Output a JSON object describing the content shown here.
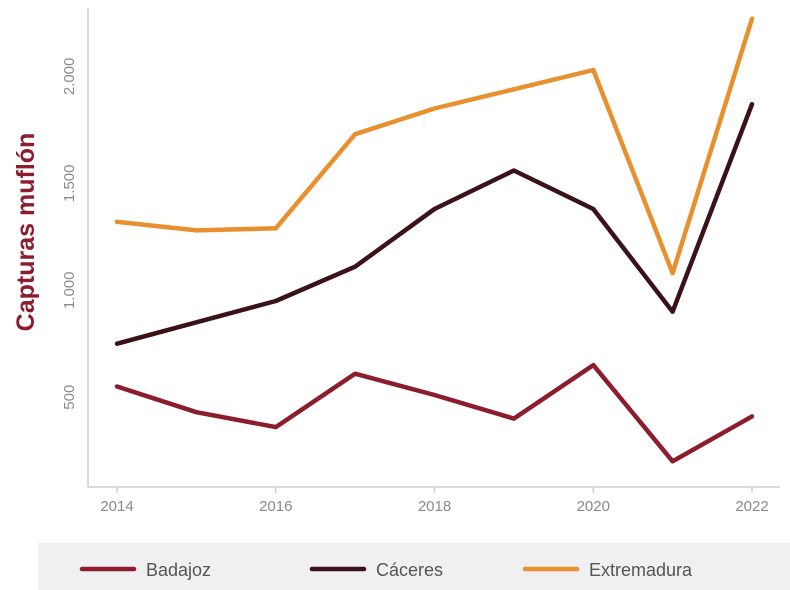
{
  "chart_data": {
    "type": "line",
    "title": "",
    "xlabel": "",
    "ylabel": "Capturas muflón",
    "x": [
      2014,
      2015,
      2016,
      2017,
      2018,
      2019,
      2020,
      2021,
      2022
    ],
    "xlim": [
      2014,
      2022
    ],
    "ylim": [
      80,
      2320
    ],
    "x_ticks": [
      2014,
      2016,
      2018,
      2020,
      2022
    ],
    "x_tick_labels": [
      "2014",
      "2016",
      "2018",
      "2020",
      "2022"
    ],
    "y_ticks": [
      500,
      1000,
      1500,
      2000
    ],
    "y_tick_labels": [
      "500",
      "1.000",
      "1.500",
      "2.000"
    ],
    "grid": false,
    "legend_position": "bottom",
    "series": [
      {
        "name": "Badajoz",
        "color": "#8b1d2c",
        "values": [
          550,
          430,
          360,
          610,
          510,
          400,
          650,
          200,
          410
        ]
      },
      {
        "name": "Cáceres",
        "color": "#3a1218",
        "values": [
          750,
          850,
          950,
          1110,
          1380,
          1560,
          1380,
          900,
          1870
        ]
      },
      {
        "name": "Extremadura",
        "color": "#e8902e",
        "values": [
          1320,
          1280,
          1290,
          1730,
          1850,
          1940,
          2030,
          1080,
          2270
        ]
      }
    ]
  },
  "colors": {
    "ylabel": "#8b1d2c",
    "axis": "#cfcfcf",
    "legend_background": "#f0eff2"
  }
}
